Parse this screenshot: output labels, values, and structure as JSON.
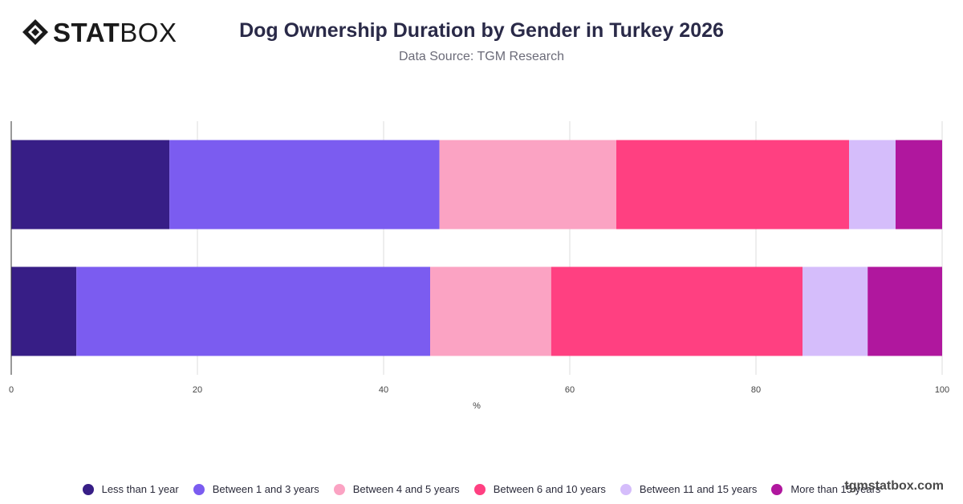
{
  "brand": {
    "logo_bold": "STAT",
    "logo_light": "BOX",
    "watermark": "tgmstatbox.com"
  },
  "chart_data": {
    "type": "bar",
    "orientation": "horizontal",
    "stacked": true,
    "title": "Dog Ownership Duration by Gender in Turkey 2026",
    "subtitle": "Data Source: TGM Research",
    "xlabel": "%",
    "ylabel": "",
    "xlim": [
      0,
      100
    ],
    "xticks": [
      "0",
      "20",
      "40",
      "60",
      "80",
      "100"
    ],
    "grid": true,
    "legend_position": "bottom",
    "categories": [
      "",
      ""
    ],
    "series": [
      {
        "name": "Less than 1 year",
        "color": "#371e86",
        "values": [
          17,
          7
        ]
      },
      {
        "name": "Between 1 and 3 years",
        "color": "#7b5cf0",
        "values": [
          29,
          38
        ]
      },
      {
        "name": "Between 4 and 5 years",
        "color": "#fba3c3",
        "values": [
          19,
          13
        ]
      },
      {
        "name": "Between 6 and 10 years",
        "color": "#ff4081",
        "values": [
          25,
          27
        ]
      },
      {
        "name": "Between 11 and 15 years",
        "color": "#d5bdfb",
        "values": [
          5,
          7
        ]
      },
      {
        "name": "More than 15 years",
        "color": "#b0179e",
        "values": [
          5,
          8
        ]
      }
    ]
  }
}
